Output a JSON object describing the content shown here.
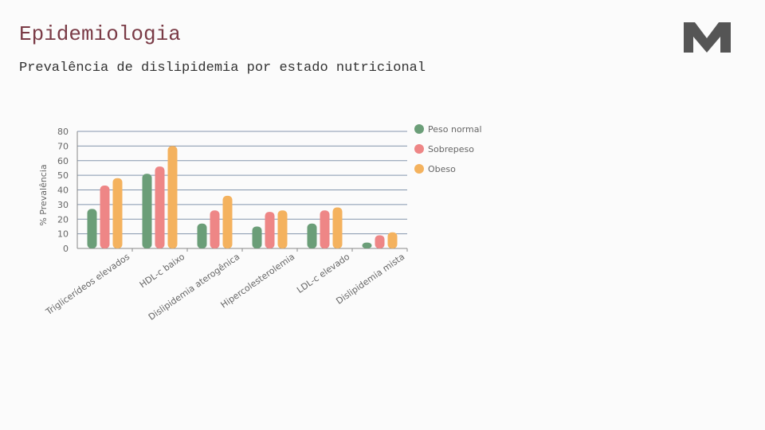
{
  "header": {
    "title": "Epidemiologia",
    "subtitle": "Prevalência de dislipidemia por estado nutricional"
  },
  "chart_data": {
    "type": "bar",
    "ylabel": "% Prevalência",
    "categories": [
      "Triglicerídeos elevados",
      "HDL-c baixo",
      "Dislipidemia aterogênica",
      "Hipercolesterolemia",
      "LDL-c elevado",
      "Dislipidemia mista"
    ],
    "series": [
      {
        "name": "Peso normal",
        "color": "#6b9e78",
        "values": [
          27,
          51,
          17,
          15,
          17,
          4
        ]
      },
      {
        "name": "Sobrepeso",
        "color": "#ee8686",
        "values": [
          43,
          56,
          26,
          25,
          26,
          9
        ]
      },
      {
        "name": "Obeso",
        "color": "#f4b25e",
        "values": [
          48,
          70,
          36,
          26,
          28,
          11
        ]
      }
    ],
    "ylim": [
      0,
      80
    ],
    "yticks": [
      0,
      10,
      20,
      30,
      40,
      50,
      60,
      70,
      80
    ],
    "grid": true,
    "legend": "right"
  }
}
